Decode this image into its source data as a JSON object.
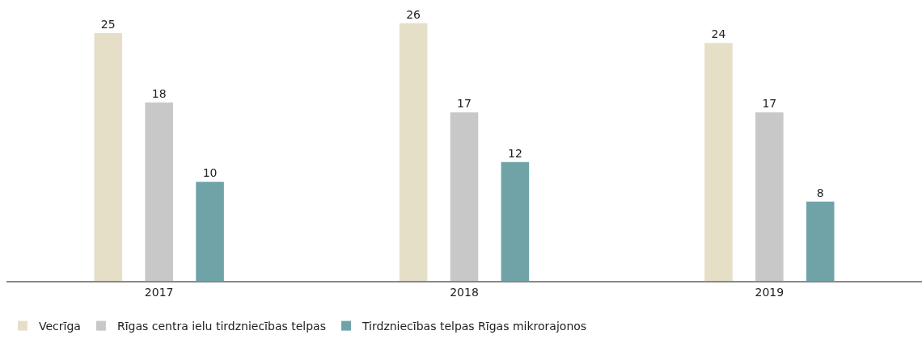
{
  "chart_data": {
    "type": "bar",
    "categories": [
      "2017",
      "2018",
      "2019"
    ],
    "series": [
      {
        "name": "Vecrīga",
        "color": "#e6dfc8",
        "values": [
          25,
          26,
          24
        ]
      },
      {
        "name": "Rīgas centra ielu tirdzniecības telpas",
        "color": "#c8c8c8",
        "values": [
          18,
          17,
          17
        ]
      },
      {
        "name": "Tirdzniecības telpas Rīgas mikrorajonos",
        "color": "#6fa3a8",
        "values": [
          10,
          12,
          8
        ]
      }
    ],
    "data_labels": true,
    "legend": "bottom left"
  }
}
